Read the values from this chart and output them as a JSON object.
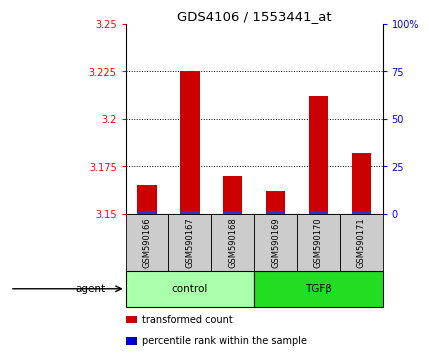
{
  "title": "GDS4106 / 1553441_at",
  "samples": [
    "GSM590166",
    "GSM590167",
    "GSM590168",
    "GSM590169",
    "GSM590170",
    "GSM590171"
  ],
  "red_values": [
    3.165,
    3.225,
    3.17,
    3.162,
    3.212,
    3.182
  ],
  "blue_values": [
    0.8,
    1.2,
    0.9,
    0.7,
    1.0,
    1.1
  ],
  "ylim_left": [
    3.15,
    3.25
  ],
  "ylim_right": [
    0,
    100
  ],
  "yticks_left": [
    3.15,
    3.175,
    3.2,
    3.225,
    3.25
  ],
  "yticks_right": [
    0,
    25,
    50,
    75,
    100
  ],
  "ytick_labels_right": [
    "0",
    "25",
    "50",
    "75",
    "100%"
  ],
  "groups": [
    {
      "label": "control",
      "color": "#AAFFAA"
    },
    {
      "label": "TGFβ",
      "color": "#22DD22"
    }
  ],
  "agent_label": "agent",
  "legend_items": [
    {
      "color": "#CC0000",
      "label": "transformed count"
    },
    {
      "color": "#0000CC",
      "label": "percentile rank within the sample"
    }
  ],
  "red_color": "#CC0000",
  "blue_color": "#3333CC",
  "sample_box_color": "#CCCCCC",
  "title_fontsize": 9.5,
  "tick_fontsize": 7,
  "legend_fontsize": 7
}
